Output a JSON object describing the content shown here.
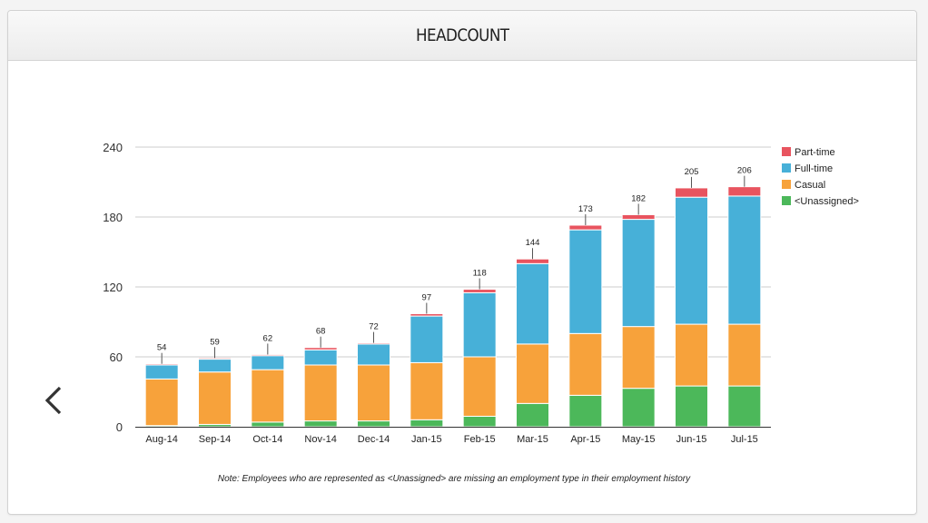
{
  "header": {
    "title": "HEADCOUNT"
  },
  "navigation": {
    "prev_icon": "chevron-left-icon"
  },
  "chart_data": {
    "type": "bar",
    "stacked": true,
    "title": "HEADCOUNT",
    "xlabel": "",
    "ylabel": "",
    "ylim": [
      0,
      240
    ],
    "yticks": [
      0,
      60,
      120,
      180,
      240
    ],
    "grid": true,
    "legend_position": "right",
    "categories": [
      "Aug-14",
      "Sep-14",
      "Oct-14",
      "Nov-14",
      "Dec-14",
      "Jan-15",
      "Feb-15",
      "Mar-15",
      "Apr-15",
      "May-15",
      "Jun-15",
      "Jul-15"
    ],
    "series": [
      {
        "name": "<Unassigned>",
        "color": "#4cb85a",
        "values": [
          1,
          2,
          4,
          5,
          5,
          6,
          9,
          20,
          27,
          33,
          35,
          35
        ]
      },
      {
        "name": "Casual",
        "color": "#f7a23b",
        "values": [
          40,
          45,
          45,
          48,
          48,
          49,
          51,
          51,
          53,
          53,
          53,
          53
        ]
      },
      {
        "name": "Full-time",
        "color": "#47b0d8",
        "values": [
          12,
          11,
          12,
          13,
          18,
          40,
          55,
          69,
          89,
          92,
          109,
          110
        ]
      },
      {
        "name": "Part-time",
        "color": "#e8545f",
        "values": [
          1,
          1,
          1,
          2,
          1,
          2,
          3,
          4,
          4,
          4,
          8,
          8
        ]
      }
    ],
    "totals": [
      54,
      59,
      62,
      68,
      72,
      97,
      118,
      144,
      173,
      182,
      205,
      206
    ],
    "legend_order": [
      "Part-time",
      "Full-time",
      "Casual",
      "<Unassigned>"
    ],
    "note": "Note: Employees who are represented as <Unassigned> are missing an employment type in their employment history"
  }
}
